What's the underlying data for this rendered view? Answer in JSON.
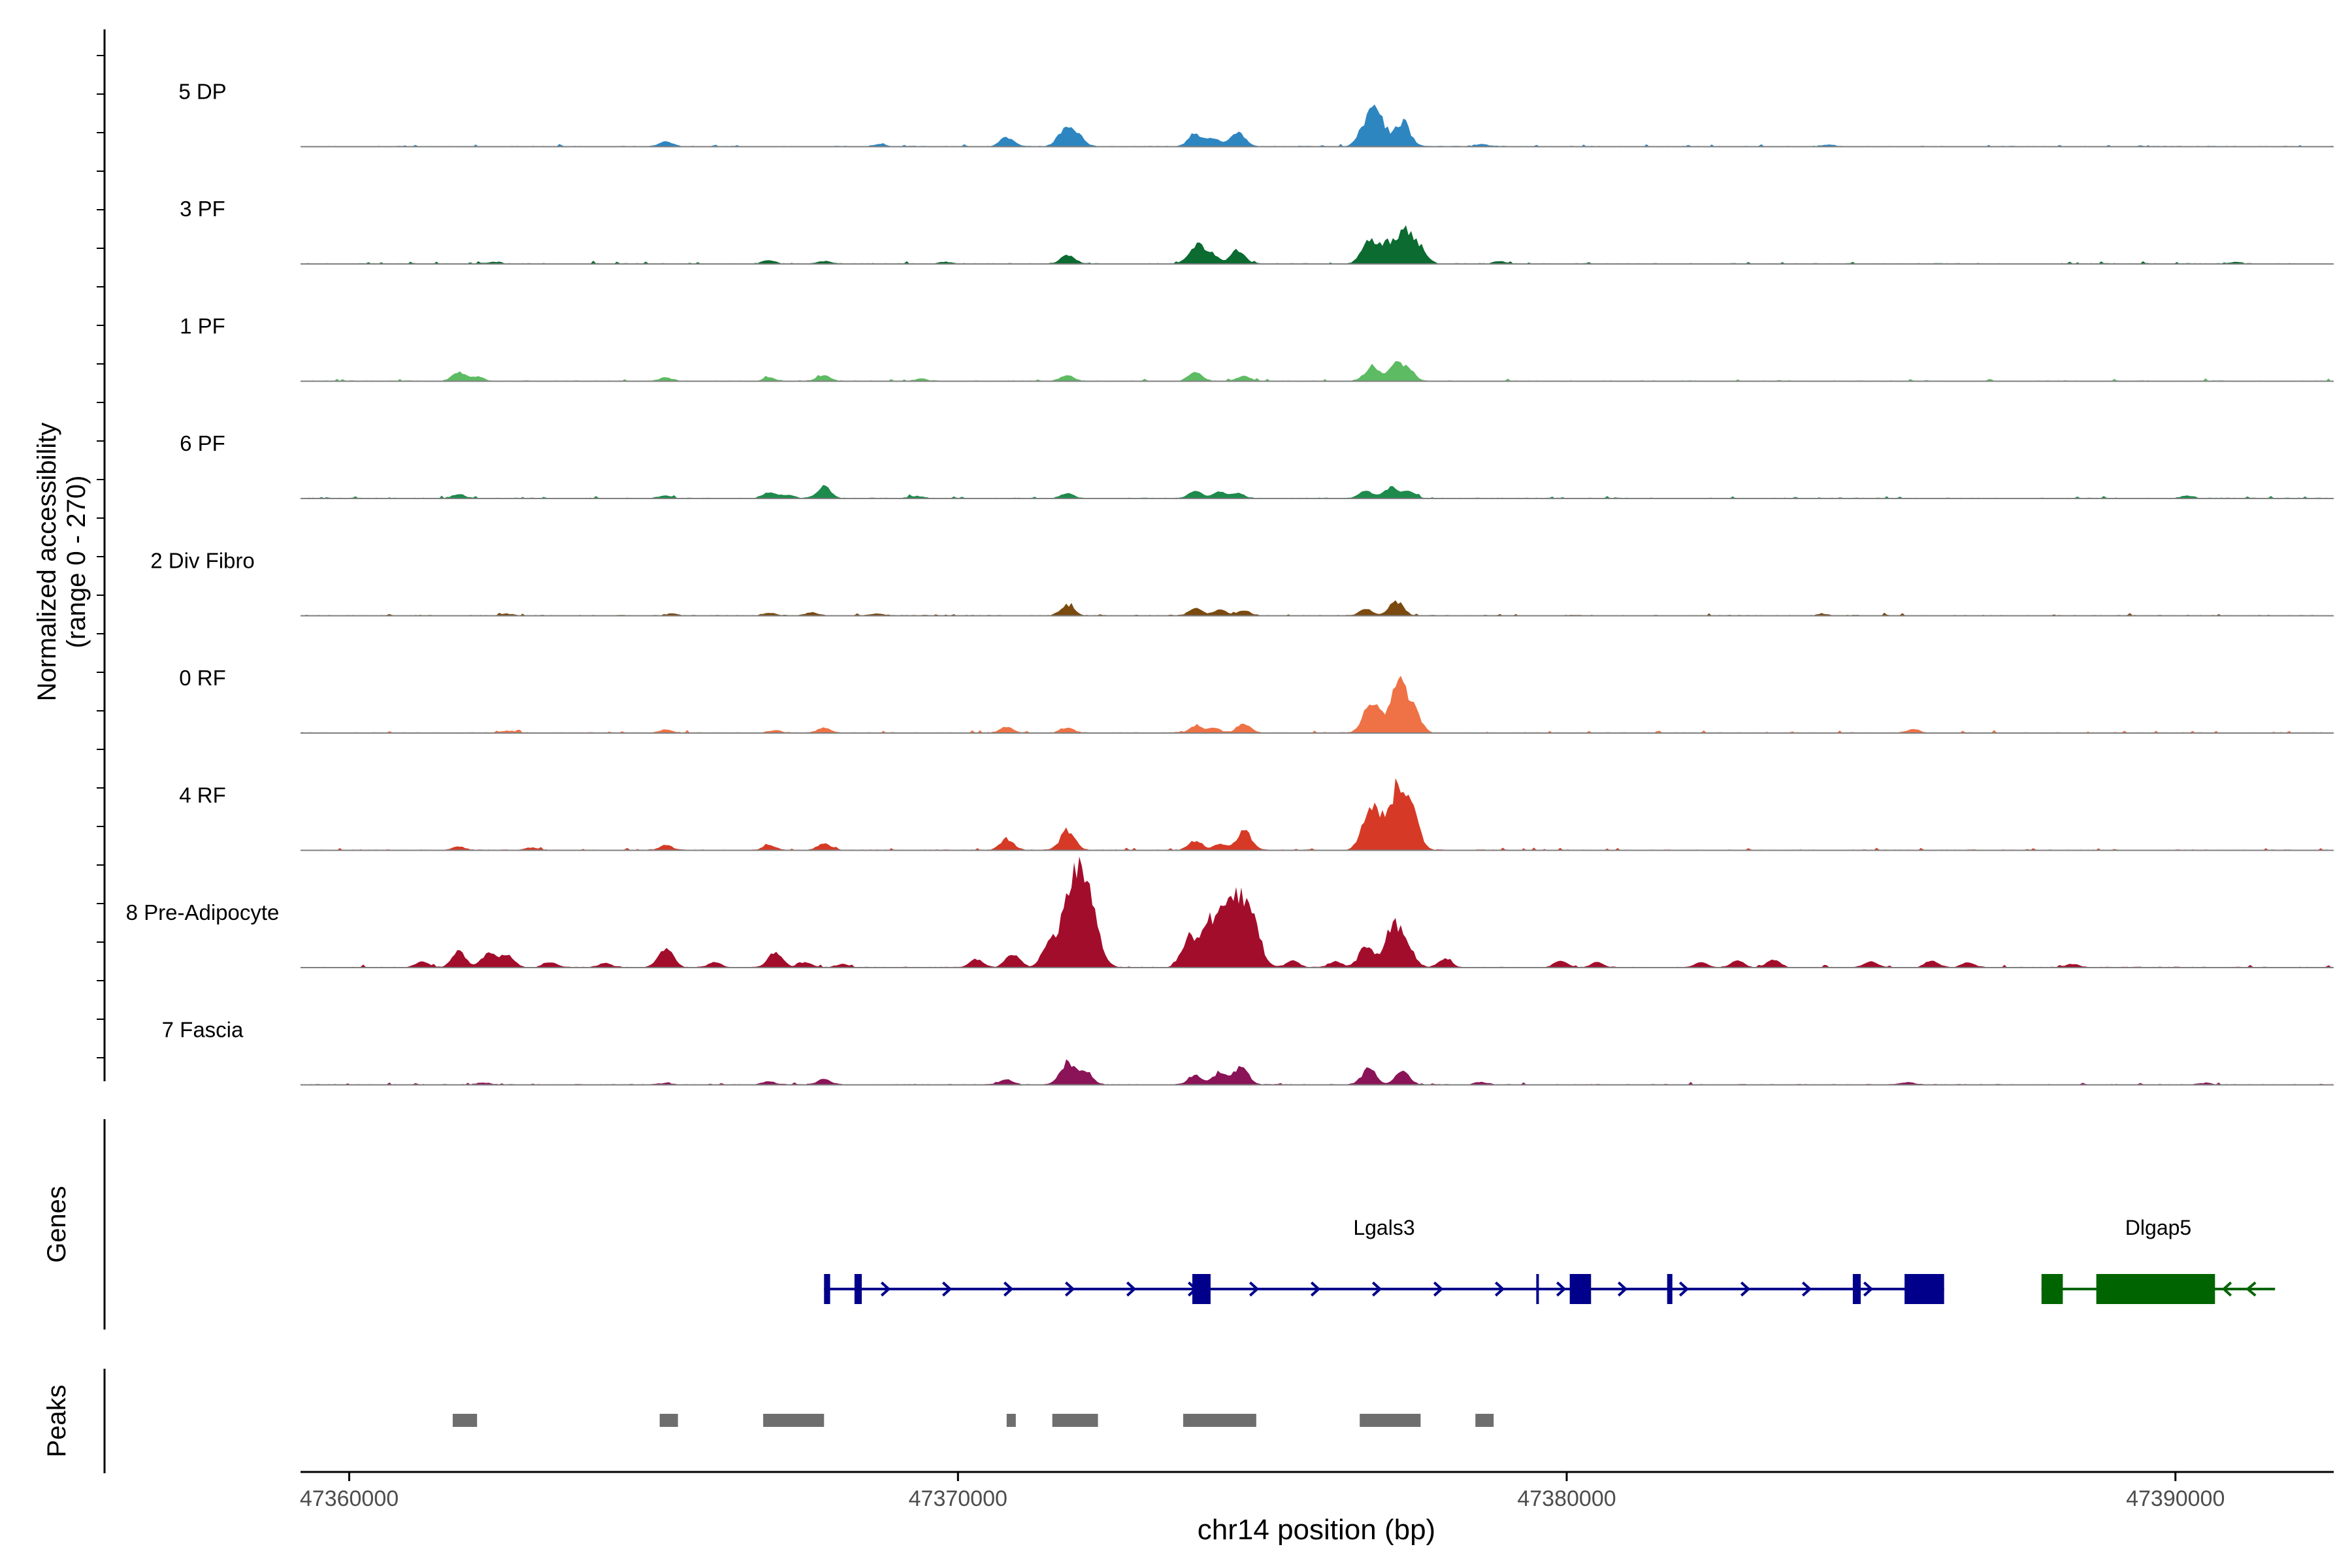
{
  "chart_data": {
    "type": "area",
    "title": "",
    "ylabel_line1": "Normalized accessibility",
    "ylabel_line2": "(range 0 - 270)",
    "ylim": [
      0,
      270
    ],
    "xlabel": "chr14 position (bp)",
    "xlim": [
      47359200,
      47392600
    ],
    "x_ticks": [
      {
        "value": 47360000,
        "label": "47360000"
      },
      {
        "value": 47370000,
        "label": "47370000"
      },
      {
        "value": 47380000,
        "label": "47380000"
      },
      {
        "value": 47390000,
        "label": "47390000"
      }
    ],
    "tracks": [
      {
        "name": "5 DP",
        "color": "#2E86C1",
        "peaks": [
          [
            47365200,
            12
          ],
          [
            47368700,
            5
          ],
          [
            47370800,
            24
          ],
          [
            47371750,
            40
          ],
          [
            47371950,
            30
          ],
          [
            47373900,
            32
          ],
          [
            47374200,
            20
          ],
          [
            47374600,
            38
          ],
          [
            47376700,
            50
          ],
          [
            47376900,
            72
          ],
          [
            47377300,
            62
          ],
          [
            47378600,
            6
          ],
          [
            47384300,
            4
          ]
        ]
      },
      {
        "name": "3 PF",
        "color": "#0B6B30",
        "peaks": [
          [
            47362400,
            4
          ],
          [
            47366900,
            8
          ],
          [
            47367800,
            6
          ],
          [
            47369800,
            4
          ],
          [
            47371800,
            22
          ],
          [
            47373900,
            45
          ],
          [
            47374150,
            28
          ],
          [
            47374600,
            35
          ],
          [
            47376750,
            58
          ],
          [
            47377050,
            48
          ],
          [
            47377350,
            80
          ],
          [
            47377600,
            30
          ],
          [
            47378900,
            5
          ],
          [
            47391000,
            4
          ]
        ]
      },
      {
        "name": "1 PF",
        "color": "#5DBB63",
        "peaks": [
          [
            47361800,
            22
          ],
          [
            47362100,
            10
          ],
          [
            47365200,
            8
          ],
          [
            47366900,
            8
          ],
          [
            47367800,
            14
          ],
          [
            47369400,
            5
          ],
          [
            47371800,
            14
          ],
          [
            47373900,
            22
          ],
          [
            47374700,
            12
          ],
          [
            47376800,
            38
          ],
          [
            47377200,
            42
          ],
          [
            47377400,
            25
          ]
        ]
      },
      {
        "name": "6 PF",
        "color": "#1E8A4C",
        "peaks": [
          [
            47361800,
            10
          ],
          [
            47365200,
            6
          ],
          [
            47366900,
            14
          ],
          [
            47367200,
            8
          ],
          [
            47367800,
            28
          ],
          [
            47369300,
            5
          ],
          [
            47371800,
            12
          ],
          [
            47373900,
            18
          ],
          [
            47374300,
            16
          ],
          [
            47374600,
            12
          ],
          [
            47376700,
            18
          ],
          [
            47377100,
            26
          ],
          [
            47377400,
            18
          ],
          [
            47390200,
            6
          ]
        ]
      },
      {
        "name": "2 Div Fibro",
        "color": "#7A4A10",
        "peaks": [
          [
            47362600,
            4
          ],
          [
            47365300,
            4
          ],
          [
            47366900,
            6
          ],
          [
            47367600,
            7
          ],
          [
            47368700,
            4
          ],
          [
            47371800,
            26
          ],
          [
            47373900,
            18
          ],
          [
            47374300,
            14
          ],
          [
            47374700,
            12
          ],
          [
            47376700,
            16
          ],
          [
            47377200,
            36
          ],
          [
            47384200,
            3
          ]
        ]
      },
      {
        "name": "0 RF",
        "color": "#EE7245",
        "peaks": [
          [
            47362600,
            5
          ],
          [
            47365200,
            8
          ],
          [
            47367000,
            6
          ],
          [
            47367800,
            12
          ],
          [
            47370800,
            14
          ],
          [
            47371800,
            12
          ],
          [
            47373900,
            16
          ],
          [
            47374200,
            12
          ],
          [
            47374700,
            22
          ],
          [
            47376800,
            80
          ],
          [
            47377250,
            120
          ],
          [
            47377500,
            45
          ],
          [
            47385700,
            8
          ]
        ]
      },
      {
        "name": "4 RF",
        "color": "#D63A26",
        "peaks": [
          [
            47361800,
            8
          ],
          [
            47363000,
            6
          ],
          [
            47365200,
            12
          ],
          [
            47366900,
            12
          ],
          [
            47367800,
            16
          ],
          [
            47370800,
            28
          ],
          [
            47371800,
            48
          ],
          [
            47373900,
            22
          ],
          [
            47374300,
            14
          ],
          [
            47374700,
            50
          ],
          [
            47376800,
            115
          ],
          [
            47377250,
            165
          ],
          [
            47377500,
            45
          ]
        ]
      },
      {
        "name": "8 Pre-Adipocyte",
        "color": "#A30D2C",
        "peaks": [
          [
            47361200,
            14
          ],
          [
            47361800,
            38
          ],
          [
            47362300,
            40
          ],
          [
            47362600,
            28
          ],
          [
            47363300,
            12
          ],
          [
            47364200,
            10
          ],
          [
            47365200,
            48
          ],
          [
            47366000,
            12
          ],
          [
            47367000,
            38
          ],
          [
            47367500,
            12
          ],
          [
            47368100,
            8
          ],
          [
            47370300,
            20
          ],
          [
            47370900,
            35
          ],
          [
            47371500,
            55
          ],
          [
            47371800,
            95
          ],
          [
            47372050,
            245
          ],
          [
            47373800,
            72
          ],
          [
            47374150,
            110
          ],
          [
            47374500,
            160
          ],
          [
            47374800,
            140
          ],
          [
            47375500,
            16
          ],
          [
            47376200,
            14
          ],
          [
            47376700,
            50
          ],
          [
            47377150,
            105
          ],
          [
            47377400,
            40
          ],
          [
            47378000,
            20
          ],
          [
            47379900,
            16
          ],
          [
            47380500,
            12
          ],
          [
            47382200,
            12
          ],
          [
            47382800,
            16
          ],
          [
            47383400,
            18
          ],
          [
            47385000,
            14
          ],
          [
            47386000,
            16
          ],
          [
            47386600,
            12
          ],
          [
            47388300,
            8
          ]
        ]
      },
      {
        "name": "7 Fascia",
        "color": "#8A1457",
        "peaks": [
          [
            47362200,
            5
          ],
          [
            47365200,
            4
          ],
          [
            47366900,
            8
          ],
          [
            47367800,
            14
          ],
          [
            47370800,
            12
          ],
          [
            47371800,
            52
          ],
          [
            47372100,
            30
          ],
          [
            47373900,
            22
          ],
          [
            47374300,
            30
          ],
          [
            47374650,
            42
          ],
          [
            47376750,
            40
          ],
          [
            47377300,
            32
          ],
          [
            47378600,
            6
          ],
          [
            47385600,
            5
          ],
          [
            47390500,
            4
          ]
        ]
      }
    ],
    "gene_track_label": "Genes",
    "genes": [
      {
        "name": "Lgals3",
        "color": "#00008B",
        "strand": "+",
        "start": 47367800,
        "end": 47386200,
        "exons": [
          [
            47367800,
            47367900
          ],
          [
            47368300,
            47368420
          ],
          [
            47373850,
            47374150
          ],
          [
            47380050,
            47380400
          ],
          [
            47381650,
            47381720
          ],
          [
            47384700,
            47384830
          ],
          [
            47385550,
            47386200
          ]
        ],
        "small_ticks": [
          47379500
        ]
      },
      {
        "name": "Dlgap5",
        "color": "#006400",
        "strand": "-",
        "start": 47387800,
        "end": 47391100,
        "exons": [
          [
            47387800,
            47388150
          ],
          [
            47388700,
            47390650
          ]
        ],
        "small_ticks": []
      }
    ],
    "peak_track_label": "Peaks",
    "peak_regions": [
      [
        47361700,
        47362100
      ],
      [
        47365100,
        47365400
      ],
      [
        47366800,
        47367800
      ],
      [
        47370800,
        47370950
      ],
      [
        47371550,
        47372300
      ],
      [
        47373700,
        47374900
      ],
      [
        47376600,
        47377600
      ],
      [
        47378500,
        47378800
      ]
    ]
  }
}
